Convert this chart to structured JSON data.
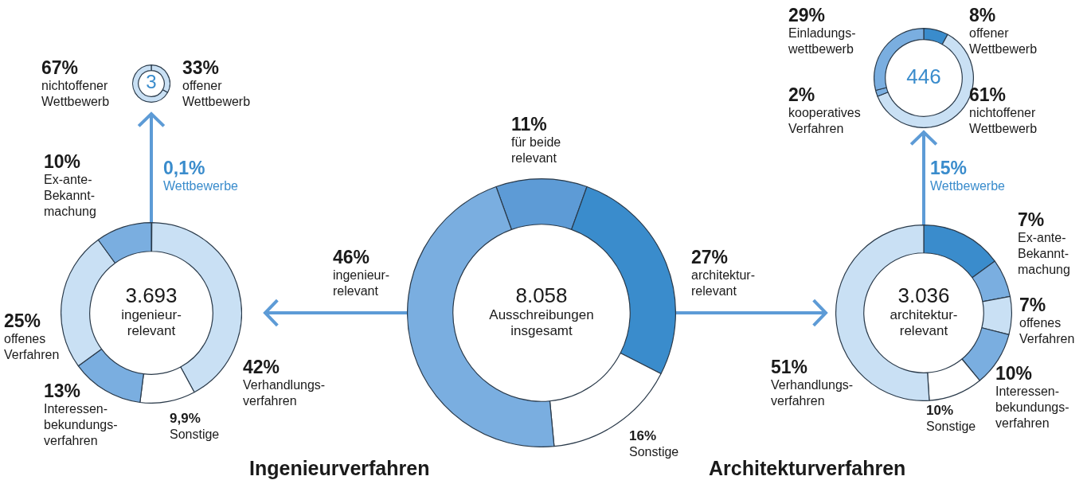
{
  "chart_data": [
    {
      "type": "donut",
      "categories": [
        "offener\nWettbewerb",
        "nichtoffener\nWettbewerb"
      ],
      "values": [
        33,
        67
      ],
      "colors": [
        "#c9e0f4",
        "#c9e0f4"
      ],
      "value_labels": [
        "33%",
        "67%"
      ],
      "annotations": [
        "3"
      ]
    },
    {
      "type": "donut",
      "title": "Ingenieurverfahren",
      "categories": [
        "Wettbewerbe",
        "Verhandlungs-\nverfahren",
        "Sonstige",
        "Interessen-\nbekundungs-\nverfahren",
        "offenes\nVerfahren",
        "Ex-ante-\nBekannt-\nmachung"
      ],
      "values": [
        0.1,
        42,
        9.9,
        13,
        25,
        10
      ],
      "colors": [
        "#3a8ccc",
        "#c9e0f4",
        "#ffffff",
        "#7aaee0",
        "#c9e0f4",
        "#7aaee0"
      ],
      "value_labels": [
        "0,1%",
        "42%",
        "9,9%",
        "13%",
        "25%",
        "10%"
      ],
      "annotations": [
        "3.693",
        "ingenieur-\nrelevant"
      ]
    },
    {
      "type": "donut",
      "categories": [
        "für beide\nrelevant",
        "architektur-\nrelevant",
        "Sonstige",
        "ingenieur-\nrelevant"
      ],
      "values": [
        11,
        27,
        16,
        46
      ],
      "colors": [
        "#5d9bd6",
        "#3a8ccc",
        "#ffffff",
        "#7aaee0"
      ],
      "value_labels": [
        "11%",
        "27%",
        "16%",
        "46%"
      ],
      "annotations": [
        "8.058",
        "Ausschreibungen\ninsgesamt"
      ]
    },
    {
      "type": "donut",
      "title": "Architekturverfahren",
      "categories": [
        "Wettbewerbe",
        "Ex-ante-\nBekannt-\nmachung",
        "offenes\nVerfahren",
        "Interessen-\nbekundungs-\nverfahren",
        "Sonstige",
        "Verhandlungs-\nverfahren"
      ],
      "values": [
        15,
        7,
        7,
        10,
        10,
        51
      ],
      "colors": [
        "#3a8ccc",
        "#7aaee0",
        "#c9e0f4",
        "#7aaee0",
        "#ffffff",
        "#c9e0f4"
      ],
      "value_labels": [
        "15%",
        "7%",
        "7%",
        "10%",
        "10%",
        "51%"
      ],
      "annotations": [
        "3.036",
        "architektur-\nrelevant"
      ]
    },
    {
      "type": "donut",
      "categories": [
        "offener\nWettbewerb",
        "nichtoffener\nWettbewerb",
        "kooperatives\nVerfahren",
        "Einladungs-\nwettbewerb"
      ],
      "values": [
        8,
        61,
        2,
        29
      ],
      "colors": [
        "#3a8ccc",
        "#c9e0f4",
        "#7aaee0",
        "#7aaee0"
      ],
      "value_labels": [
        "8%",
        "61%",
        "2%",
        "29%"
      ],
      "annotations": [
        "446"
      ]
    }
  ]
}
